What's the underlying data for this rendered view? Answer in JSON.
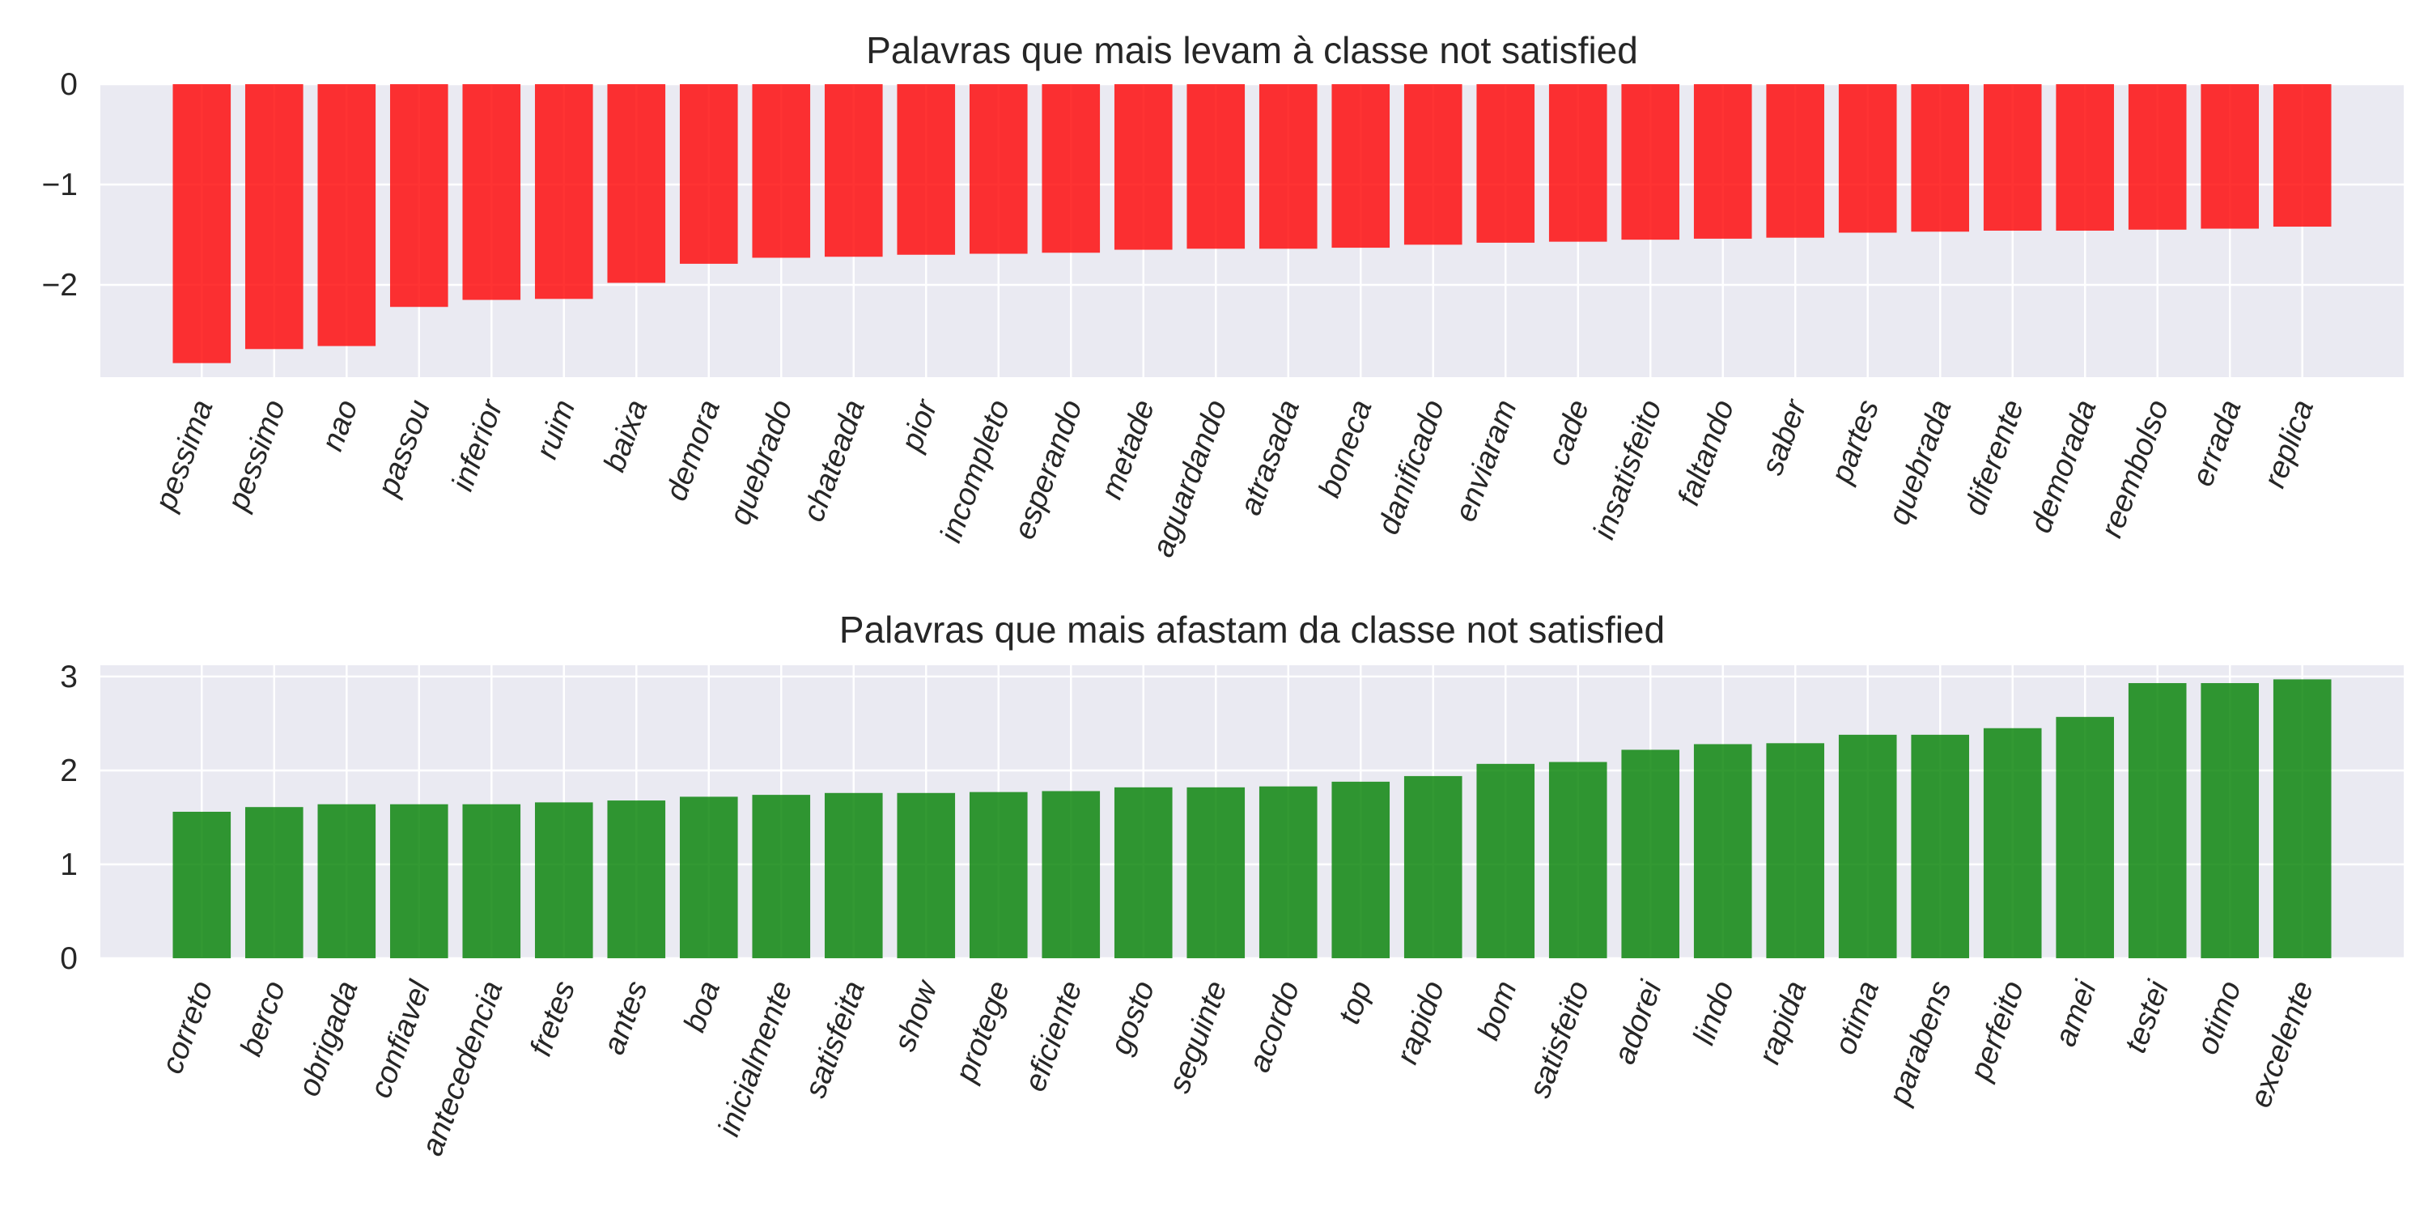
{
  "chart_data": [
    {
      "type": "bar",
      "title": "Palavras que mais levam à classe not satisfied",
      "xlabel": "",
      "ylabel": "",
      "ylim": [
        -2.92,
        0
      ],
      "yticks": [
        0,
        -1,
        -2
      ],
      "ytick_labels": [
        "0",
        "−1",
        "−2"
      ],
      "grid": true,
      "legend": "none",
      "bar_color": "#ff0000",
      "categories": [
        "pessima",
        "pessimo",
        "nao",
        "passou",
        "inferior",
        "ruim",
        "baixa",
        "demora",
        "quebrado",
        "chateada",
        "pior",
        "incompleto",
        "esperando",
        "metade",
        "aguardando",
        "atrasada",
        "boneca",
        "danificado",
        "enviaram",
        "cade",
        "insatisfeito",
        "faltando",
        "saber",
        "partes",
        "quebrada",
        "diferente",
        "demorada",
        "reembolso",
        "errada",
        "replica"
      ],
      "values": [
        -2.78,
        -2.64,
        -2.61,
        -2.22,
        -2.15,
        -2.14,
        -1.98,
        -1.79,
        -1.73,
        -1.72,
        -1.7,
        -1.69,
        -1.68,
        -1.65,
        -1.64,
        -1.64,
        -1.63,
        -1.6,
        -1.58,
        -1.57,
        -1.55,
        -1.54,
        -1.53,
        -1.48,
        -1.47,
        -1.46,
        -1.46,
        -1.45,
        -1.44,
        -1.42
      ]
    },
    {
      "type": "bar",
      "title": "Palavras que mais afastam da classe not satisfied",
      "xlabel": "",
      "ylabel": "",
      "ylim": [
        0,
        3.12
      ],
      "yticks": [
        0,
        1,
        2,
        3
      ],
      "ytick_labels": [
        "0",
        "1",
        "2",
        "3"
      ],
      "grid": true,
      "legend": "none",
      "bar_color": "#008000",
      "categories": [
        "correto",
        "berco",
        "obrigada",
        "confiavel",
        "antecedencia",
        "fretes",
        "antes",
        "boa",
        "inicialmente",
        "satisfeita",
        "show",
        "protege",
        "eficiente",
        "gosto",
        "seguinte",
        "acordo",
        "top",
        "rapido",
        "bom",
        "satisfeito",
        "adorei",
        "lindo",
        "rapida",
        "otima",
        "parabens",
        "perfeito",
        "amei",
        "testei",
        "otimo",
        "excelente"
      ],
      "values": [
        1.56,
        1.61,
        1.64,
        1.64,
        1.64,
        1.66,
        1.68,
        1.72,
        1.74,
        1.76,
        1.76,
        1.77,
        1.78,
        1.82,
        1.82,
        1.83,
        1.88,
        1.94,
        2.07,
        2.09,
        2.22,
        2.28,
        2.29,
        2.38,
        2.38,
        2.45,
        2.57,
        2.93,
        2.93,
        2.97
      ]
    }
  ]
}
